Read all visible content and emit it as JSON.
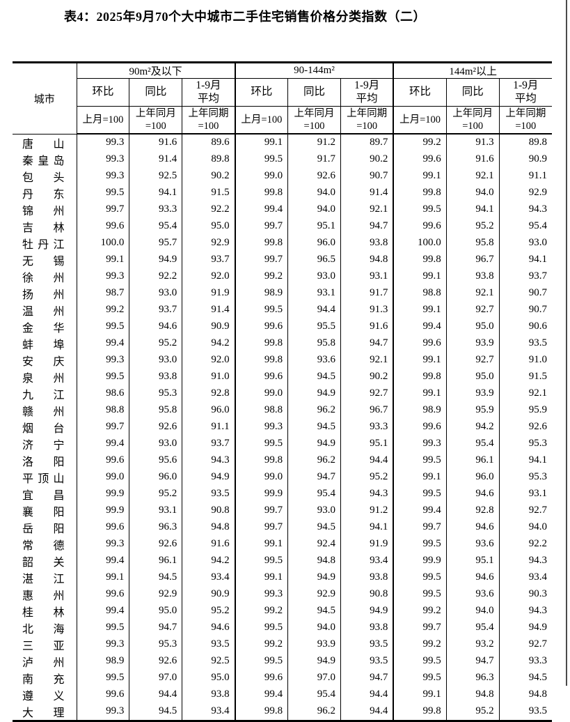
{
  "page": {
    "title": "表4：2025年9月70个大中城市二手住宅销售价格分类指数（二）"
  },
  "table": {
    "city_header": "城市",
    "group_headers": [
      "90m²及以下",
      "90-144m²",
      "144m²以上"
    ],
    "metric_headers": [
      "环比",
      "同比",
      "1-9月\n平均"
    ],
    "base_headers": [
      "上月=100",
      "上年同月\n=100",
      "上年同期\n=100"
    ],
    "rows": [
      {
        "city": "唐山",
        "values": [
          "99.3",
          "91.6",
          "89.6",
          "99.1",
          "91.2",
          "89.7",
          "99.2",
          "91.3",
          "89.8"
        ]
      },
      {
        "city": "秦皇岛",
        "values": [
          "99.3",
          "91.4",
          "89.8",
          "99.5",
          "91.7",
          "90.2",
          "99.6",
          "91.6",
          "90.9"
        ]
      },
      {
        "city": "包头",
        "values": [
          "99.3",
          "92.5",
          "90.2",
          "99.0",
          "92.6",
          "90.7",
          "99.1",
          "92.1",
          "91.1"
        ]
      },
      {
        "city": "丹东",
        "values": [
          "99.5",
          "94.1",
          "91.5",
          "99.8",
          "94.0",
          "91.4",
          "99.8",
          "94.0",
          "92.9"
        ]
      },
      {
        "city": "锦州",
        "values": [
          "99.7",
          "93.3",
          "92.2",
          "99.4",
          "94.0",
          "92.1",
          "99.5",
          "94.1",
          "94.3"
        ]
      },
      {
        "city": "吉林",
        "values": [
          "99.6",
          "95.4",
          "95.0",
          "99.7",
          "95.1",
          "94.7",
          "99.6",
          "95.2",
          "95.4"
        ]
      },
      {
        "city": "牡丹江",
        "values": [
          "100.0",
          "95.7",
          "92.9",
          "99.8",
          "96.0",
          "93.8",
          "100.0",
          "95.8",
          "93.0"
        ]
      },
      {
        "city": "无锡",
        "values": [
          "99.1",
          "94.9",
          "93.7",
          "99.7",
          "96.5",
          "94.8",
          "99.8",
          "96.7",
          "94.1"
        ]
      },
      {
        "city": "徐州",
        "values": [
          "99.3",
          "92.2",
          "92.0",
          "99.2",
          "93.0",
          "93.1",
          "99.1",
          "93.8",
          "93.7"
        ]
      },
      {
        "city": "扬州",
        "values": [
          "98.7",
          "93.0",
          "91.9",
          "98.9",
          "93.1",
          "91.7",
          "98.8",
          "92.1",
          "90.7"
        ]
      },
      {
        "city": "温州",
        "values": [
          "99.2",
          "93.7",
          "91.4",
          "99.5",
          "94.4",
          "91.3",
          "99.1",
          "92.7",
          "90.7"
        ]
      },
      {
        "city": "金华",
        "values": [
          "99.5",
          "94.6",
          "90.9",
          "99.6",
          "95.5",
          "91.6",
          "99.4",
          "95.0",
          "90.6"
        ]
      },
      {
        "city": "蚌埠",
        "values": [
          "99.4",
          "95.2",
          "94.2",
          "99.8",
          "95.8",
          "94.7",
          "99.6",
          "93.9",
          "93.5"
        ]
      },
      {
        "city": "安庆",
        "values": [
          "99.3",
          "93.0",
          "92.0",
          "99.8",
          "93.6",
          "92.1",
          "99.1",
          "92.7",
          "91.0"
        ]
      },
      {
        "city": "泉州",
        "values": [
          "99.5",
          "93.8",
          "91.0",
          "99.6",
          "94.5",
          "90.2",
          "99.8",
          "95.0",
          "91.5"
        ]
      },
      {
        "city": "九江",
        "values": [
          "98.6",
          "95.3",
          "92.8",
          "99.0",
          "94.9",
          "92.7",
          "99.1",
          "93.9",
          "92.1"
        ]
      },
      {
        "city": "赣州",
        "values": [
          "98.8",
          "95.8",
          "96.0",
          "98.8",
          "96.2",
          "96.7",
          "98.9",
          "95.9",
          "95.9"
        ]
      },
      {
        "city": "烟台",
        "values": [
          "99.7",
          "92.6",
          "91.1",
          "99.3",
          "94.5",
          "93.3",
          "99.6",
          "94.2",
          "92.6"
        ]
      },
      {
        "city": "济宁",
        "values": [
          "99.4",
          "93.0",
          "93.7",
          "99.5",
          "94.9",
          "95.1",
          "99.3",
          "95.4",
          "95.3"
        ]
      },
      {
        "city": "洛阳",
        "values": [
          "99.6",
          "95.6",
          "94.3",
          "99.8",
          "96.2",
          "94.4",
          "99.5",
          "96.1",
          "94.1"
        ]
      },
      {
        "city": "平顶山",
        "values": [
          "99.0",
          "96.0",
          "94.9",
          "99.0",
          "94.7",
          "95.2",
          "99.1",
          "96.0",
          "95.3"
        ]
      },
      {
        "city": "宜昌",
        "values": [
          "99.9",
          "95.2",
          "93.5",
          "99.9",
          "95.4",
          "94.3",
          "99.5",
          "94.6",
          "93.1"
        ]
      },
      {
        "city": "襄阳",
        "values": [
          "99.9",
          "93.1",
          "90.8",
          "99.7",
          "93.0",
          "91.2",
          "99.4",
          "92.8",
          "92.7"
        ]
      },
      {
        "city": "岳阳",
        "values": [
          "99.6",
          "96.3",
          "94.8",
          "99.7",
          "94.5",
          "94.1",
          "99.7",
          "94.6",
          "94.0"
        ]
      },
      {
        "city": "常德",
        "values": [
          "99.3",
          "92.6",
          "91.6",
          "99.1",
          "92.4",
          "91.9",
          "99.5",
          "93.6",
          "92.2"
        ]
      },
      {
        "city": "韶关",
        "values": [
          "99.4",
          "96.1",
          "94.2",
          "99.5",
          "94.8",
          "93.4",
          "99.9",
          "95.1",
          "94.3"
        ]
      },
      {
        "city": "湛江",
        "values": [
          "99.1",
          "94.5",
          "93.4",
          "99.1",
          "94.9",
          "93.8",
          "99.5",
          "94.6",
          "93.4"
        ]
      },
      {
        "city": "惠州",
        "values": [
          "99.6",
          "92.9",
          "90.9",
          "99.3",
          "92.9",
          "90.8",
          "99.5",
          "93.6",
          "90.3"
        ]
      },
      {
        "city": "桂林",
        "values": [
          "99.4",
          "95.0",
          "95.2",
          "99.2",
          "94.5",
          "94.9",
          "99.2",
          "94.0",
          "94.3"
        ]
      },
      {
        "city": "北海",
        "values": [
          "99.5",
          "94.7",
          "94.6",
          "99.5",
          "94.0",
          "93.8",
          "99.7",
          "95.4",
          "94.9"
        ]
      },
      {
        "city": "三亚",
        "values": [
          "99.3",
          "95.3",
          "93.5",
          "99.2",
          "93.9",
          "93.5",
          "99.2",
          "93.2",
          "92.7"
        ]
      },
      {
        "city": "泸州",
        "values": [
          "98.9",
          "92.6",
          "92.5",
          "99.5",
          "94.9",
          "93.5",
          "99.5",
          "94.7",
          "93.3"
        ]
      },
      {
        "city": "南充",
        "values": [
          "99.5",
          "97.0",
          "95.0",
          "99.6",
          "97.0",
          "94.7",
          "99.5",
          "96.3",
          "94.5"
        ]
      },
      {
        "city": "遵义",
        "values": [
          "99.6",
          "94.4",
          "93.8",
          "99.4",
          "95.4",
          "94.4",
          "99.1",
          "94.8",
          "94.8"
        ]
      },
      {
        "city": "大理",
        "values": [
          "99.3",
          "94.5",
          "93.4",
          "99.8",
          "96.2",
          "94.4",
          "99.8",
          "95.2",
          "93.5"
        ]
      }
    ]
  }
}
